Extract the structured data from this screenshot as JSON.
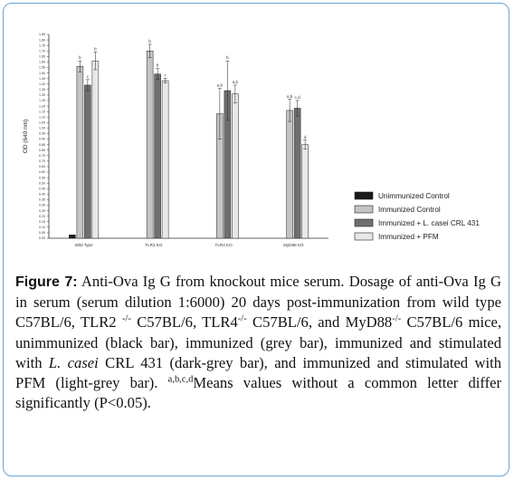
{
  "chart_data": {
    "type": "bar",
    "ylabel": "OD (640 nm)",
    "xlabel": "",
    "ylim": [
      0,
      1.85
    ],
    "y_tick_step": 0.05,
    "categories": [
      "Wild Type",
      "TLR2 KO",
      "TLR4 KO",
      "MyD88 KO"
    ],
    "series": [
      {
        "name": "Unimmunized Control",
        "color": "#1a1a1a",
        "values": [
          0.03,
          null,
          null,
          null
        ],
        "errors": [
          0,
          null,
          null,
          null
        ],
        "letters": [
          "",
          "",
          "",
          ""
        ]
      },
      {
        "name": "Immunized Control",
        "color": "#c4c4c4",
        "values": [
          1.56,
          1.7,
          1.13,
          1.16
        ],
        "errors": [
          0.05,
          0.06,
          0.23,
          0.1
        ],
        "letters": [
          "b",
          "b",
          "a,b",
          "a,b"
        ]
      },
      {
        "name": "Immunized + L. casei CRL 431",
        "color": "#6f6f6f",
        "values": [
          1.39,
          1.49,
          1.34,
          1.18
        ],
        "errors": [
          0.05,
          0.05,
          0.27,
          0.07
        ],
        "letters": [
          "c",
          "b",
          "b",
          "c,d"
        ]
      },
      {
        "name": "Immunized + PFM",
        "color": "#e8e8e8",
        "values": [
          1.61,
          1.43,
          1.31,
          0.85
        ],
        "errors": [
          0.08,
          0.02,
          0.08,
          0.04
        ],
        "letters": [
          "b",
          "c",
          "a,b",
          "d"
        ]
      }
    ],
    "legend_position": "bottom-right",
    "grid": false
  },
  "caption": {
    "label": "Figure 7:",
    "text_1": " Anti-Ova Ig G from knockout mice serum. Dosage of anti-Ova Ig G in serum (serum dilution 1:6000) 20 days post-immunization from wild type C57BL/6, TLR2 ",
    "sup_1": "-/-",
    "text_2": " C57BL/6, TLR4",
    "sup_2": "-/-",
    "text_3": " C57BL/6, and MyD88",
    "sup_3": "-/-",
    "text_4": " C57BL/6 mice, unimmunized (black bar), immunized (grey bar), immunized and stimulated with ",
    "italic_1": "L. casei",
    "text_5": " CRL 431 (dark-grey bar), and immunized and stimulated with PFM (light-grey bar). ",
    "sup_4": "a,b,c,d",
    "text_6": "Means values without a common letter differ significantly (P<0.05)."
  }
}
